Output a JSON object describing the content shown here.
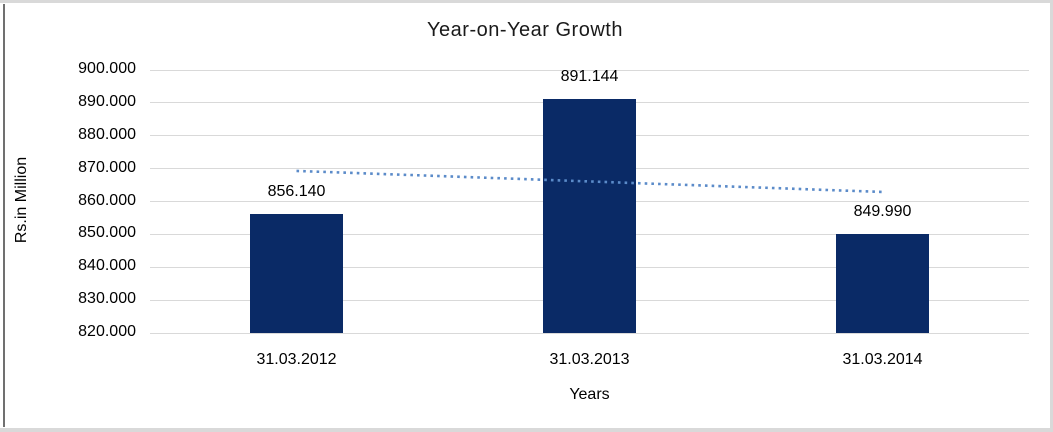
{
  "chart_data": {
    "type": "bar",
    "title": "Year-on-Year Growth",
    "xlabel": "Years",
    "ylabel": "Rs.in Million",
    "categories": [
      "31.03.2012",
      "31.03.2013",
      "31.03.2014"
    ],
    "values": [
      856.14,
      891.144,
      849.99
    ],
    "data_labels": [
      "856.140",
      "891.144",
      "849.990"
    ],
    "ylim": [
      820,
      900
    ],
    "ytick_step": 10,
    "ytick_labels": [
      "900.000",
      "890.000",
      "880.000",
      "870.000",
      "860.000",
      "850.000",
      "840.000",
      "830.000",
      "820.000"
    ],
    "grid": true,
    "legend": "none",
    "colors": {
      "bar": "#0a2a66",
      "gridline": "#d9d9d9",
      "trendline": "#5b8bc9",
      "text": "#000000",
      "frame_border": "#d9d9d9",
      "frame_left_border": "#707070"
    },
    "trendline": {
      "style": "dotted",
      "start_value": 869.3,
      "end_value": 862.9,
      "spans": "first-to-last-category"
    }
  }
}
